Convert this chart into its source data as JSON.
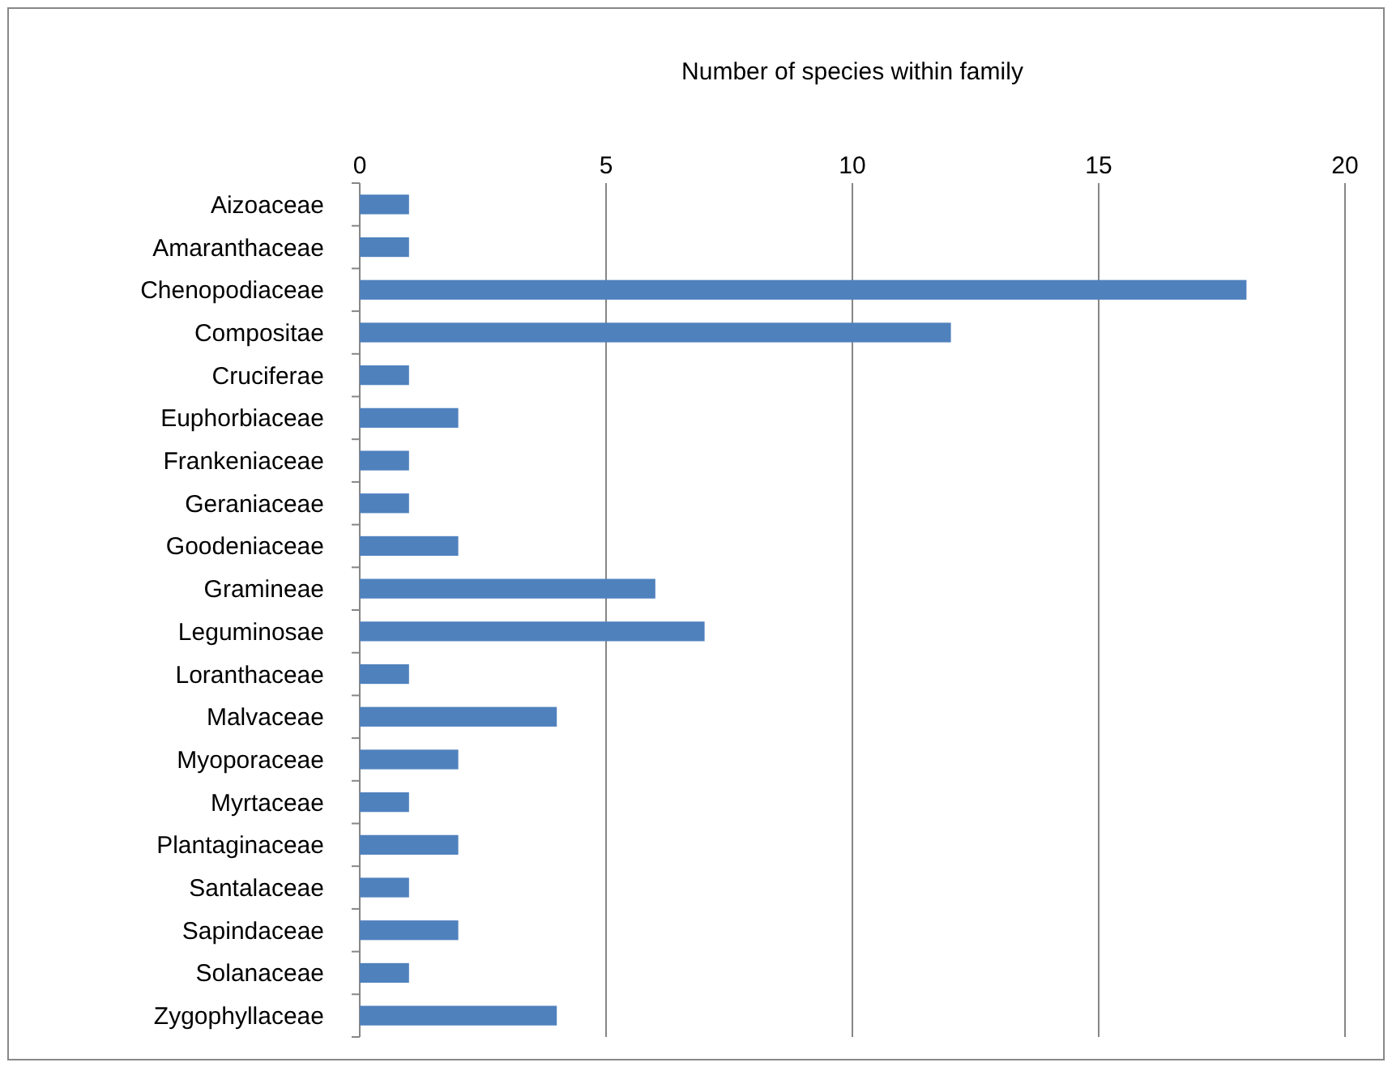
{
  "chart_data": {
    "type": "bar",
    "orientation": "horizontal",
    "xlabel": "Number of species within family",
    "categories": [
      "Aizoaceae",
      "Amaranthaceae",
      "Chenopodiaceae",
      "Compositae",
      "Cruciferae",
      "Euphorbiaceae",
      "Frankeniaceae",
      "Geraniaceae",
      "Goodeniaceae",
      "Gramineae",
      "Leguminosae",
      "Loranthaceae",
      "Malvaceae",
      "Myoporaceae",
      "Myrtaceae",
      "Plantaginaceae",
      "Santalaceae",
      "Sapindaceae",
      "Solanaceae",
      "Zygophyllaceae"
    ],
    "values": [
      1,
      1,
      18,
      12,
      1,
      2,
      1,
      1,
      2,
      6,
      7,
      1,
      4,
      2,
      1,
      2,
      1,
      2,
      1,
      4
    ],
    "color": "#4f81bd",
    "xlim": [
      0,
      20
    ],
    "xticks": [
      0,
      5,
      10,
      15,
      20
    ],
    "grid": "x"
  }
}
